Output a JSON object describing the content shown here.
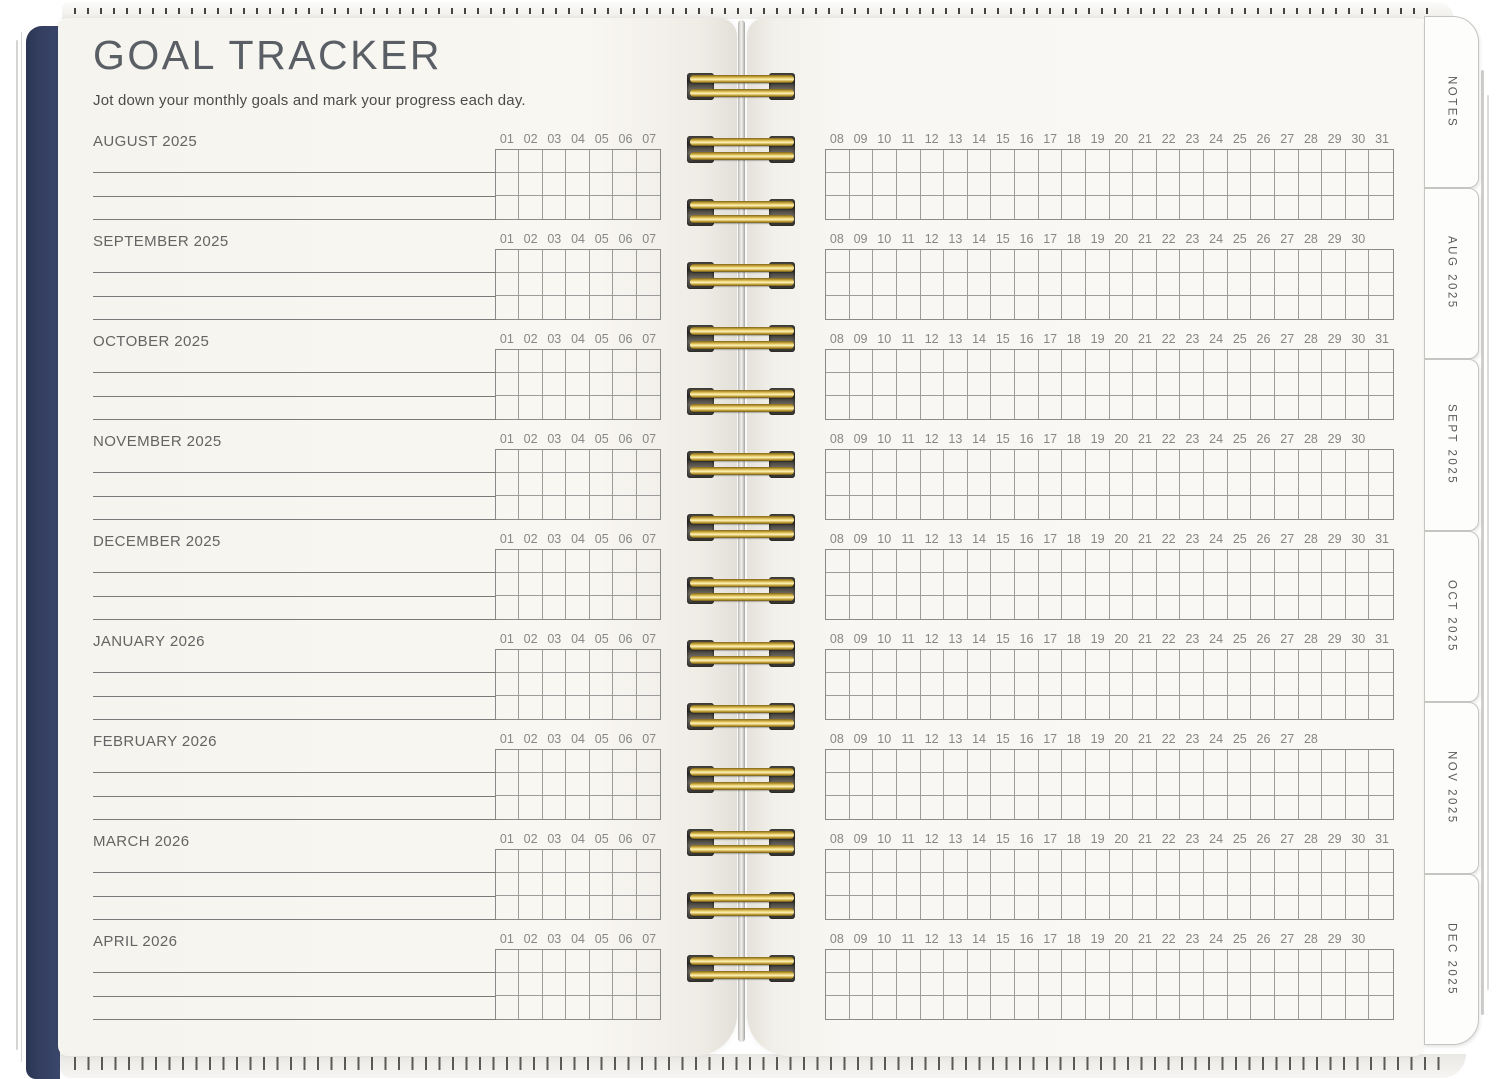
{
  "header": {
    "title": "GOAL TRACKER",
    "subtitle": "Jot down your monthly goals and mark your progress each day."
  },
  "left_day_labels": [
    "01",
    "02",
    "03",
    "04",
    "05",
    "06",
    "07"
  ],
  "right_grid_columns": 24,
  "months": [
    {
      "label": "AUGUST 2025",
      "right_days": [
        "08",
        "09",
        "10",
        "11",
        "12",
        "13",
        "14",
        "15",
        "16",
        "17",
        "18",
        "19",
        "20",
        "21",
        "22",
        "23",
        "24",
        "25",
        "26",
        "27",
        "28",
        "29",
        "30",
        "31"
      ]
    },
    {
      "label": "SEPTEMBER 2025",
      "right_days": [
        "08",
        "09",
        "10",
        "11",
        "12",
        "13",
        "14",
        "15",
        "16",
        "17",
        "18",
        "19",
        "20",
        "21",
        "22",
        "23",
        "24",
        "25",
        "26",
        "27",
        "28",
        "29",
        "30"
      ]
    },
    {
      "label": "OCTOBER 2025",
      "right_days": [
        "08",
        "09",
        "10",
        "11",
        "12",
        "13",
        "14",
        "15",
        "16",
        "17",
        "18",
        "19",
        "20",
        "21",
        "22",
        "23",
        "24",
        "25",
        "26",
        "27",
        "28",
        "29",
        "30",
        "31"
      ]
    },
    {
      "label": "NOVEMBER 2025",
      "right_days": [
        "08",
        "09",
        "10",
        "11",
        "12",
        "13",
        "14",
        "15",
        "16",
        "17",
        "18",
        "19",
        "20",
        "21",
        "22",
        "23",
        "24",
        "25",
        "26",
        "27",
        "28",
        "29",
        "30"
      ]
    },
    {
      "label": "DECEMBER 2025",
      "right_days": [
        "08",
        "09",
        "10",
        "11",
        "12",
        "13",
        "14",
        "15",
        "16",
        "17",
        "18",
        "19",
        "20",
        "21",
        "22",
        "23",
        "24",
        "25",
        "26",
        "27",
        "28",
        "29",
        "30",
        "31"
      ]
    },
    {
      "label": "JANUARY 2026",
      "right_days": [
        "08",
        "09",
        "10",
        "11",
        "12",
        "13",
        "14",
        "15",
        "16",
        "17",
        "18",
        "19",
        "20",
        "21",
        "22",
        "23",
        "24",
        "25",
        "26",
        "27",
        "28",
        "29",
        "30",
        "31"
      ]
    },
    {
      "label": "FEBRUARY 2026",
      "right_days": [
        "08",
        "09",
        "10",
        "11",
        "12",
        "13",
        "14",
        "15",
        "16",
        "17",
        "18",
        "19",
        "20",
        "21",
        "22",
        "23",
        "24",
        "25",
        "26",
        "27",
        "28"
      ]
    },
    {
      "label": "MARCH 2026",
      "right_days": [
        "08",
        "09",
        "10",
        "11",
        "12",
        "13",
        "14",
        "15",
        "16",
        "17",
        "18",
        "19",
        "20",
        "21",
        "22",
        "23",
        "24",
        "25",
        "26",
        "27",
        "28",
        "29",
        "30",
        "31"
      ]
    },
    {
      "label": "APRIL 2026",
      "right_days": [
        "08",
        "09",
        "10",
        "11",
        "12",
        "13",
        "14",
        "15",
        "16",
        "17",
        "18",
        "19",
        "20",
        "21",
        "22",
        "23",
        "24",
        "25",
        "26",
        "27",
        "28",
        "29",
        "30"
      ]
    }
  ],
  "tabs": [
    {
      "label": "NOTES"
    },
    {
      "label": "AUG 2025"
    },
    {
      "label": "SEPT 2025"
    },
    {
      "label": "OCT 2025"
    },
    {
      "label": "NOV 2025"
    },
    {
      "label": "DEC 2025"
    }
  ],
  "colors": {
    "cover_navy": "#333e60",
    "spiral_gold": "#caa83e",
    "paper": "#f8f6f1",
    "grid_line": "#9c9c9c",
    "rule_line": "#7a7a7a",
    "title_text": "#5a5f66",
    "body_text": "#4b4b4b",
    "month_label_text": "#646464",
    "day_number_text": "#868686",
    "tab_text": "#5a5a5a"
  }
}
